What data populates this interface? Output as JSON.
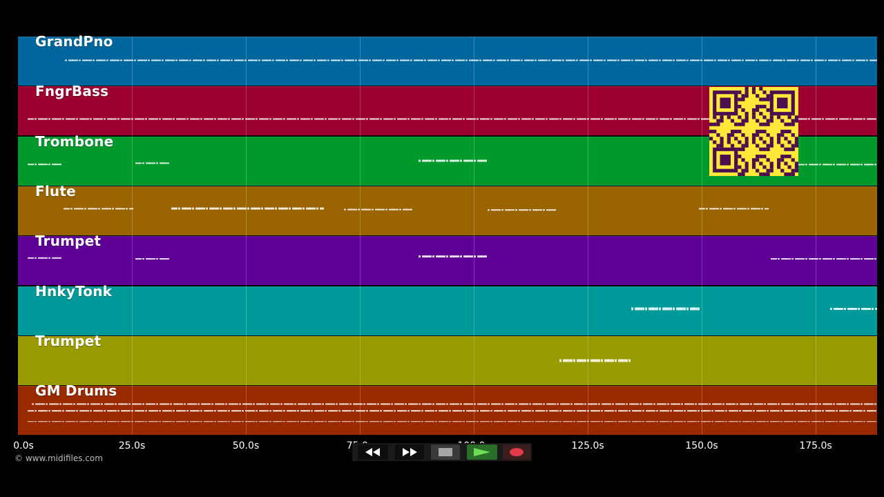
{
  "app": {
    "copyright": "© www.midifiles.com"
  },
  "timeline": {
    "ticks": [
      "0.0s",
      "25.0s",
      "50.0s",
      "75.0s",
      "100.0s",
      "125.0s",
      "150.0s",
      "175.0s"
    ]
  },
  "tracks": [
    {
      "name": "GrandPno",
      "color": "#00679e"
    },
    {
      "name": "FngrBass",
      "color": "#9b0030"
    },
    {
      "name": "Trombone",
      "color": "#00992b"
    },
    {
      "name": "Flute",
      "color": "#9a6400"
    },
    {
      "name": "Trumpet",
      "color": "#5e0096"
    },
    {
      "name": "HnkyTonk",
      "color": "#00999a"
    },
    {
      "name": "Trumpet",
      "color": "#999900"
    },
    {
      "name": "GM Drums",
      "color": "#992a00"
    }
  ],
  "qr": {
    "color_fg": "#4a0f4f",
    "color_bg": "#ffe83a"
  },
  "transport": {
    "buttons": [
      {
        "icon": "rewind-icon"
      },
      {
        "icon": "fast-forward-icon"
      },
      {
        "icon": "stop-icon"
      },
      {
        "icon": "play-icon"
      },
      {
        "icon": "record-icon"
      }
    ]
  }
}
